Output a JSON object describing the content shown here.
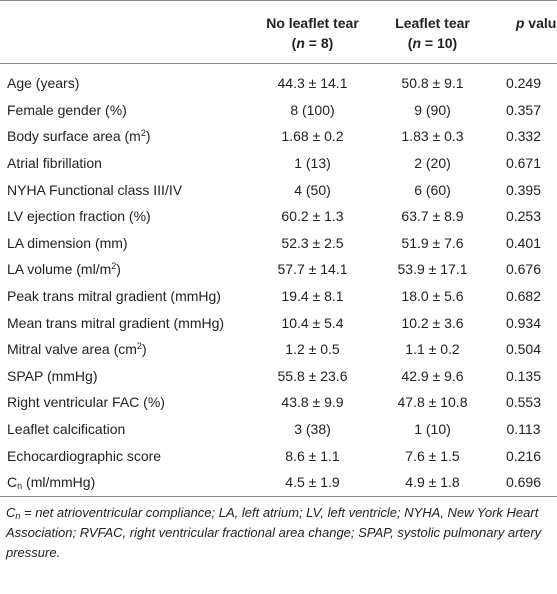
{
  "header": {
    "columns": [
      {
        "label": [
          "No leaflet tear"
        ],
        "n": [
          "(",
          {
            "text": "n",
            "format": "i"
          },
          " = 8)"
        ]
      },
      {
        "label": [
          "Leaflet tear"
        ],
        "n": [
          "(",
          {
            "text": "n",
            "format": "i"
          },
          " = 10)"
        ]
      },
      {
        "label": [
          {
            "text": "p",
            "format": "i"
          },
          " value"
        ]
      }
    ]
  },
  "table": {
    "rows": [
      {
        "label": [
          "Age (years)"
        ],
        "values": [
          "44.3 ± 14.1",
          "50.8 ± 9.1",
          "0.249"
        ]
      },
      {
        "label": [
          "Female gender (%)"
        ],
        "values": [
          "8 (100)",
          "9 (90)",
          "0.357"
        ]
      },
      {
        "label": [
          "Body surface area (m",
          {
            "text": "2",
            "format": "sup"
          },
          ")"
        ],
        "values": [
          "1.68 ± 0.2",
          "1.83 ± 0.3",
          "0.332"
        ]
      },
      {
        "label": [
          "Atrial fibrillation"
        ],
        "values": [
          "1 (13)",
          "2 (20)",
          "0.671"
        ]
      },
      {
        "label": [
          "NYHA Functional class III/IV"
        ],
        "values": [
          "4 (50)",
          "6 (60)",
          "0.395"
        ]
      },
      {
        "label": [
          "LV ejection fraction (%)"
        ],
        "values": [
          "60.2 ± 1.3",
          "63.7 ± 8.9",
          "0.253"
        ]
      },
      {
        "label": [
          "LA dimension (mm)"
        ],
        "values": [
          "52.3 ± 2.5",
          "51.9 ± 7.6",
          "0.401"
        ]
      },
      {
        "label": [
          "LA volume (ml/m",
          {
            "text": "2",
            "format": "sup"
          },
          ")"
        ],
        "values": [
          "57.7 ± 14.1",
          "53.9 ± 17.1",
          "0.676"
        ]
      },
      {
        "label": [
          "Peak trans mitral gradient (mmHg)"
        ],
        "values": [
          "19.4 ± 8.1",
          "18.0 ± 5.6",
          "0.682"
        ]
      },
      {
        "label": [
          "Mean trans mitral gradient (mmHg)"
        ],
        "values": [
          "10.4 ± 5.4",
          "10.2 ± 3.6",
          "0.934"
        ]
      },
      {
        "label": [
          "Mitral valve area (cm",
          {
            "text": "2",
            "format": "sup"
          },
          ")"
        ],
        "values": [
          "1.2 ± 0.5",
          "1.1 ± 0.2",
          "0.504"
        ]
      },
      {
        "label": [
          "SPAP (mmHg)"
        ],
        "values": [
          "55.8 ± 23.6",
          "42.9 ± 9.6",
          "0.135"
        ]
      },
      {
        "label": [
          "Right ventricular FAC (%)"
        ],
        "values": [
          "43.8 ± 9.9",
          "47.8 ± 10.8",
          "0.553"
        ]
      },
      {
        "label": [
          "Leaflet calcification"
        ],
        "values": [
          "3 (38)",
          "1 (10)",
          "0.113"
        ]
      },
      {
        "label": [
          "Echocardiographic score"
        ],
        "values": [
          "8.6 ± 1.1",
          "7.6 ± 1.5",
          "0.216"
        ]
      },
      {
        "label": [
          "C",
          {
            "text": "n",
            "format": "sub"
          },
          " (ml/mmHg)"
        ],
        "values": [
          "4.5 ± 1.9",
          "4.9 ± 1.8",
          "0.696"
        ]
      }
    ]
  },
  "footnote": [
    "C",
    {
      "text": "n",
      "format": "sub"
    },
    " = net atrioventricular compliance; LA, left atrium; LV, left ventricle; NYHA, New York Heart Association; RVFAC, right ventricular fractional area change; SPAP, systolic pulmonary artery pressure."
  ]
}
